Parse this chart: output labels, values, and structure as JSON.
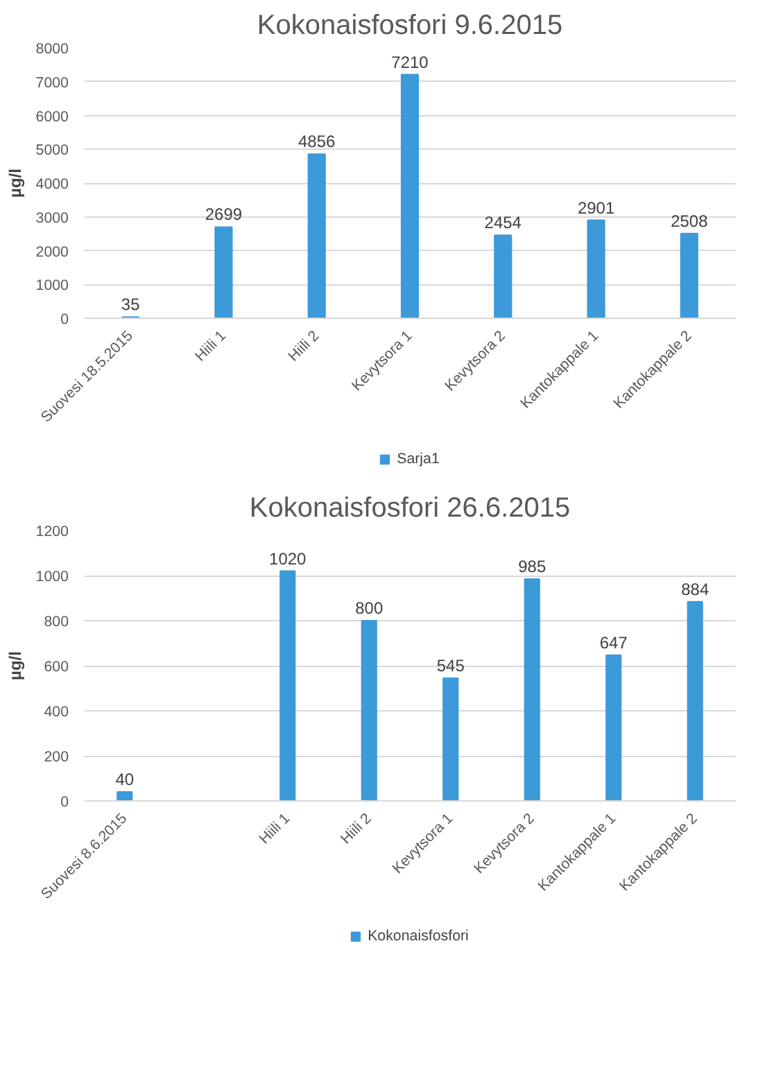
{
  "chart_data": [
    {
      "type": "bar",
      "title": "Kokonaisfosfori 9.6.2015",
      "ylabel": "µg/l",
      "categories": [
        "Suovesi 18.5.2015",
        "Hiili 1",
        "Hiili 2",
        "Kevytsora 1",
        "Kevytsora 2",
        "Kantokappale 1",
        "Kantokappale 2"
      ],
      "series": [
        {
          "name": "Sarja1",
          "color": "#3c9ad8",
          "values": [
            35,
            2699,
            4856,
            7210,
            2454,
            2901,
            2508
          ]
        }
      ],
      "ylim": [
        0,
        8000
      ],
      "yticks": [
        0,
        1000,
        2000,
        3000,
        4000,
        5000,
        6000,
        7000,
        8000
      ],
      "grid": "y",
      "legend": "bottom",
      "data_labels": true
    },
    {
      "type": "bar",
      "title": "Kokonaisfosfori 26.6.2015",
      "ylabel": "µg/l",
      "categories": [
        "Suovesi 8.6.2015",
        null,
        "Hiili 1",
        "Hiili 2",
        "Kevytsora 1",
        "Kevytsora 2",
        "Kantokappale 1",
        "Kantokappale 2"
      ],
      "series": [
        {
          "name": "Kokonaisfosfori",
          "color": "#3c9ad8",
          "values": [
            40,
            null,
            1020,
            800,
            545,
            985,
            647,
            884
          ]
        }
      ],
      "ylim": [
        0,
        1200
      ],
      "yticks": [
        0,
        200,
        400,
        600,
        800,
        1000,
        1200
      ],
      "grid": "y",
      "legend": "bottom",
      "data_labels": true
    }
  ]
}
